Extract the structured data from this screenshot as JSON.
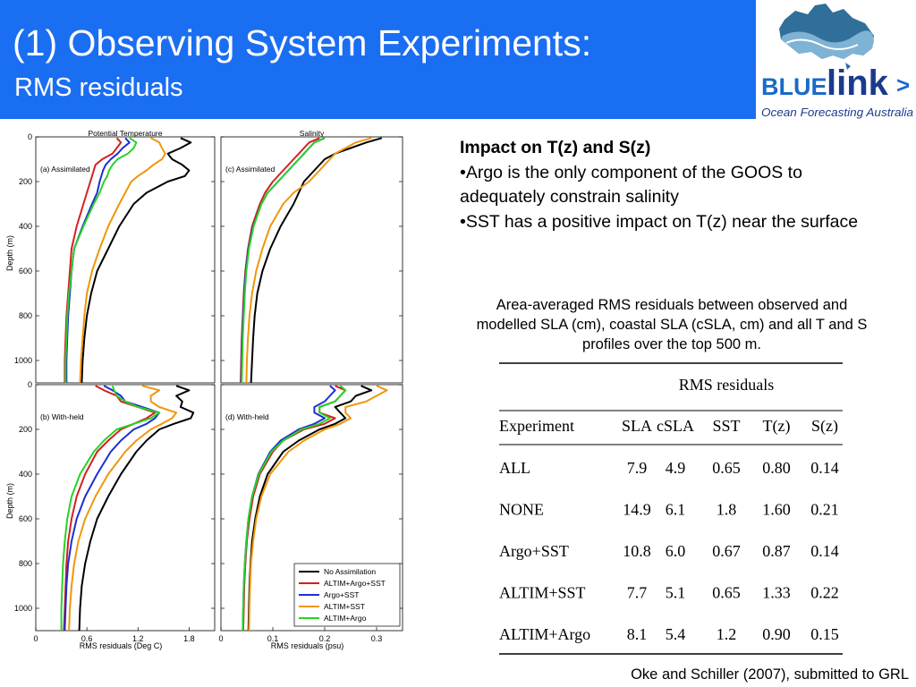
{
  "header": {
    "title": "(1) Observing System Experiments:",
    "subtitle": "RMS residuals",
    "background": "#1a6ef2"
  },
  "logo": {
    "word_blue": "BLUE",
    "word_link": "link",
    "arrow": ">",
    "tagline": "Ocean Forecasting Australia",
    "icon": "australia-map-wave-icon"
  },
  "text_panel": {
    "heading": "Impact on T(z) and S(z)",
    "bullets": [
      "•Argo is the only component of the GOOS to adequately constrain salinity",
      "•SST has a positive impact on T(z) near the surface"
    ]
  },
  "caption": "Area-averaged RMS residuals between observed and modelled SLA (cm), coastal SLA (cSLA, cm) and all T and S profiles over the top 500 m.",
  "citation": "Oke and Schiller (2007), submitted to GRL",
  "colors": {
    "No Assimilation": "#000000",
    "ALTIM+Argo+SST": "#d42020",
    "Argo+SST": "#1e2fd0",
    "ALTIM+SST": "#f0960a",
    "ALTIM+Argo": "#28d228"
  },
  "chart_data": [
    {
      "type": "line",
      "panel": "(a) Assimilated",
      "title": "Potential Temperature",
      "xlabel": "",
      "ylabel": "Depth (m)",
      "xlim": [
        0,
        2.1
      ],
      "ylim": [
        1100,
        0
      ],
      "y": [
        5,
        25,
        50,
        75,
        100,
        125,
        150,
        175,
        200,
        250,
        300,
        400,
        500,
        600,
        700,
        800,
        900,
        1000,
        1100
      ],
      "series": [
        {
          "name": "No Assimilation",
          "values": [
            1.7,
            1.82,
            1.7,
            1.55,
            1.6,
            1.72,
            1.8,
            1.75,
            1.55,
            1.3,
            1.15,
            0.98,
            0.85,
            0.72,
            0.65,
            0.6,
            0.57,
            0.55,
            0.54
          ]
        },
        {
          "name": "ALTIM+Argo+SST",
          "values": [
            0.95,
            1.0,
            0.95,
            0.9,
            0.78,
            0.7,
            0.68,
            0.66,
            0.64,
            0.6,
            0.56,
            0.48,
            0.42,
            0.4,
            0.38,
            0.36,
            0.35,
            0.34,
            0.34
          ]
        },
        {
          "name": "Argo+SST",
          "values": [
            1.05,
            1.1,
            1.02,
            0.96,
            0.88,
            0.82,
            0.79,
            0.77,
            0.75,
            0.72,
            0.66,
            0.55,
            0.45,
            0.42,
            0.4,
            0.38,
            0.37,
            0.36,
            0.36
          ]
        },
        {
          "name": "ALTIM+SST",
          "values": [
            1.35,
            1.45,
            1.48,
            1.52,
            1.48,
            1.38,
            1.3,
            1.2,
            1.12,
            1.05,
            0.98,
            0.85,
            0.75,
            0.66,
            0.6,
            0.57,
            0.55,
            0.53,
            0.52
          ]
        },
        {
          "name": "ALTIM+Argo",
          "values": [
            1.1,
            1.18,
            1.15,
            1.08,
            0.96,
            0.9,
            0.86,
            0.84,
            0.8,
            0.75,
            0.68,
            0.56,
            0.45,
            0.42,
            0.39,
            0.37,
            0.36,
            0.35,
            0.35
          ]
        }
      ]
    },
    {
      "type": "line",
      "panel": "(c) Assimilated",
      "title": "Salinity",
      "xlabel": "",
      "ylabel": "",
      "xlim": [
        0,
        0.35
      ],
      "ylim": [
        1100,
        0
      ],
      "y": [
        5,
        25,
        50,
        75,
        100,
        150,
        200,
        250,
        300,
        400,
        500,
        600,
        700,
        800,
        900,
        1000,
        1100
      ],
      "series": [
        {
          "name": "No Assimilation",
          "values": [
            0.31,
            0.28,
            0.25,
            0.22,
            0.2,
            0.18,
            0.16,
            0.15,
            0.14,
            0.115,
            0.095,
            0.08,
            0.07,
            0.065,
            0.062,
            0.06,
            0.058
          ]
        },
        {
          "name": "ALTIM+Argo+SST",
          "values": [
            0.19,
            0.17,
            0.16,
            0.15,
            0.14,
            0.12,
            0.1,
            0.085,
            0.075,
            0.06,
            0.052,
            0.047,
            0.044,
            0.042,
            0.04,
            0.039,
            0.038
          ]
        },
        {
          "name": "Argo+SST",
          "values": [
            0.2,
            0.18,
            0.17,
            0.16,
            0.15,
            0.13,
            0.11,
            0.09,
            0.078,
            0.062,
            0.053,
            0.048,
            0.045,
            0.043,
            0.041,
            0.04,
            0.039
          ]
        },
        {
          "name": "ALTIM+SST",
          "values": [
            0.29,
            0.26,
            0.24,
            0.22,
            0.21,
            0.19,
            0.17,
            0.14,
            0.12,
            0.095,
            0.08,
            0.068,
            0.06,
            0.055,
            0.052,
            0.05,
            0.049
          ]
        },
        {
          "name": "ALTIM+Argo",
          "values": [
            0.2,
            0.18,
            0.17,
            0.16,
            0.15,
            0.13,
            0.11,
            0.09,
            0.078,
            0.063,
            0.054,
            0.049,
            0.046,
            0.044,
            0.042,
            0.041,
            0.04
          ]
        }
      ]
    },
    {
      "type": "line",
      "panel": "(b) With-held",
      "title": "",
      "xlabel": "RMS residuals (Deg C)",
      "ylabel": "Depth (m)",
      "xlim": [
        0,
        2.1
      ],
      "ylim": [
        1100,
        0
      ],
      "xticks": [
        0,
        0.6,
        1.2,
        1.8
      ],
      "y": [
        5,
        25,
        50,
        75,
        100,
        125,
        150,
        175,
        200,
        250,
        300,
        400,
        500,
        600,
        700,
        800,
        900,
        1000,
        1100
      ],
      "series": [
        {
          "name": "No Assimilation",
          "values": [
            1.65,
            1.8,
            1.65,
            1.72,
            1.7,
            1.85,
            1.82,
            1.62,
            1.45,
            1.3,
            1.18,
            1.0,
            0.85,
            0.72,
            0.64,
            0.58,
            0.54,
            0.52,
            0.51
          ]
        },
        {
          "name": "ALTIM+Argo+SST",
          "values": [
            0.7,
            0.8,
            0.95,
            1.0,
            1.2,
            1.4,
            1.3,
            1.15,
            1.0,
            0.85,
            0.72,
            0.58,
            0.48,
            0.42,
            0.38,
            0.36,
            0.35,
            0.34,
            0.33
          ]
        },
        {
          "name": "Argo+SST",
          "values": [
            0.8,
            0.9,
            1.0,
            1.05,
            1.25,
            1.45,
            1.4,
            1.3,
            1.15,
            1.0,
            0.88,
            0.72,
            0.58,
            0.48,
            0.42,
            0.38,
            0.36,
            0.35,
            0.34
          ]
        },
        {
          "name": "ALTIM+SST",
          "values": [
            1.25,
            1.45,
            1.35,
            1.35,
            1.45,
            1.65,
            1.6,
            1.48,
            1.35,
            1.18,
            1.05,
            0.85,
            0.7,
            0.58,
            0.5,
            0.45,
            0.42,
            0.4,
            0.39
          ]
        },
        {
          "name": "ALTIM+Argo",
          "values": [
            0.9,
            0.92,
            0.95,
            1.05,
            1.2,
            1.45,
            1.35,
            1.15,
            0.95,
            0.8,
            0.68,
            0.52,
            0.42,
            0.37,
            0.34,
            0.32,
            0.31,
            0.3,
            0.3
          ]
        }
      ]
    },
    {
      "type": "line",
      "panel": "(d) With-held",
      "title": "",
      "xlabel": "RMS residuals (psu)",
      "ylabel": "",
      "xlim": [
        0,
        0.35
      ],
      "ylim": [
        1100,
        0
      ],
      "xticks": [
        0,
        0.1,
        0.2,
        0.3
      ],
      "y": [
        5,
        25,
        50,
        75,
        100,
        125,
        150,
        175,
        200,
        250,
        300,
        400,
        500,
        600,
        700,
        800,
        900,
        1000,
        1100
      ],
      "series": [
        {
          "name": "No Assimilation",
          "values": [
            0.27,
            0.29,
            0.26,
            0.25,
            0.22,
            0.23,
            0.24,
            0.22,
            0.19,
            0.15,
            0.12,
            0.09,
            0.075,
            0.066,
            0.06,
            0.057,
            0.055,
            0.054,
            0.053
          ]
        },
        {
          "name": "ALTIM+Argo+SST",
          "values": [
            0.22,
            0.24,
            0.23,
            0.22,
            0.19,
            0.19,
            0.22,
            0.2,
            0.16,
            0.12,
            0.1,
            0.075,
            0.062,
            0.055,
            0.05,
            0.047,
            0.045,
            0.044,
            0.043
          ]
        },
        {
          "name": "Argo+SST",
          "values": [
            0.21,
            0.22,
            0.21,
            0.2,
            0.18,
            0.18,
            0.2,
            0.18,
            0.15,
            0.115,
            0.095,
            0.072,
            0.06,
            0.053,
            0.049,
            0.046,
            0.044,
            0.043,
            0.042
          ]
        },
        {
          "name": "ALTIM+SST",
          "values": [
            0.3,
            0.32,
            0.3,
            0.28,
            0.24,
            0.24,
            0.25,
            0.23,
            0.2,
            0.16,
            0.13,
            0.095,
            0.078,
            0.068,
            0.062,
            0.058,
            0.056,
            0.055,
            0.054
          ]
        },
        {
          "name": "ALTIM+Argo",
          "values": [
            0.23,
            0.24,
            0.23,
            0.22,
            0.19,
            0.19,
            0.21,
            0.19,
            0.155,
            0.12,
            0.097,
            0.073,
            0.06,
            0.053,
            0.049,
            0.046,
            0.044,
            0.043,
            0.042
          ]
        }
      ]
    },
    {
      "type": "table",
      "title": "RMS residuals",
      "columns": [
        "Experiment",
        "SLA",
        "cSLA",
        "SST",
        "T(z)",
        "S(z)"
      ],
      "rows": [
        [
          "ALL",
          "7.9",
          "4.9",
          "0.65",
          "0.80",
          "0.14"
        ],
        [
          "NONE",
          "14.9",
          "6.1",
          "1.8",
          "1.60",
          "0.21"
        ],
        [
          "Argo+SST",
          "10.8",
          "6.0",
          "0.67",
          "0.87",
          "0.14"
        ],
        [
          "ALTIM+SST",
          "7.7",
          "5.1",
          "0.65",
          "1.33",
          "0.22"
        ],
        [
          "ALTIM+Argo",
          "8.1",
          "5.4",
          "1.2",
          "0.90",
          "0.15"
        ]
      ]
    }
  ],
  "figure_labels": {
    "y_ticks": [
      "0",
      "200",
      "400",
      "600",
      "800",
      "1000"
    ]
  }
}
